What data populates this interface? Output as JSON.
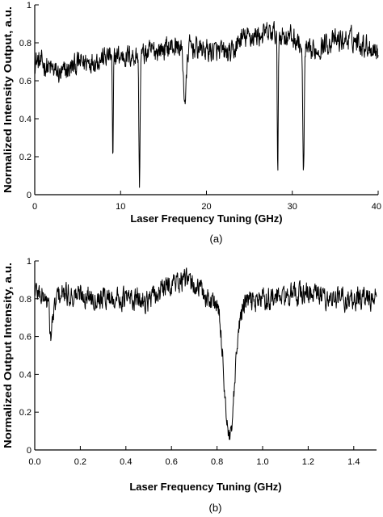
{
  "chart_data": [
    {
      "type": "line",
      "panel_label": "(a)",
      "xlabel": "Laser Frequency Tuning (GHz)",
      "ylabel": "Normalized Intensity Output, a.u.",
      "xlim": [
        0,
        40
      ],
      "ylim": [
        0,
        1
      ],
      "xticks": [
        "0",
        "10",
        "20",
        "30",
        "40"
      ],
      "yticks": [
        "0",
        "0.2",
        "0.4",
        "0.6",
        "0.8",
        "1"
      ],
      "grid": false,
      "legend": "none",
      "line_color": "#000000",
      "noise_amplitude": 0.05,
      "baseline": {
        "x": [
          0,
          2,
          3,
          5,
          7,
          9,
          11,
          13,
          14,
          16,
          18,
          20,
          23,
          24,
          26,
          28,
          30,
          32,
          34,
          37,
          40
        ],
        "y": [
          0.71,
          0.66,
          0.63,
          0.69,
          0.71,
          0.73,
          0.73,
          0.74,
          0.76,
          0.78,
          0.78,
          0.76,
          0.74,
          0.82,
          0.84,
          0.85,
          0.83,
          0.74,
          0.8,
          0.82,
          0.76
        ]
      },
      "dips": [
        {
          "x": 9.1,
          "y": 0.15,
          "width": 0.08
        },
        {
          "x": 12.2,
          "y": 0.07,
          "width": 0.1
        },
        {
          "x": 17.5,
          "y": 0.5,
          "width": 0.25
        },
        {
          "x": 28.3,
          "y": 0.09,
          "width": 0.08
        },
        {
          "x": 31.3,
          "y": 0.1,
          "width": 0.12
        }
      ]
    },
    {
      "type": "line",
      "panel_label": "(b)",
      "xlabel": "Laser Frequency Tuning (GHz)",
      "ylabel": "Normalized Output Intensity, a.u.",
      "xlim": [
        0,
        1.5
      ],
      "ylim": [
        0,
        1
      ],
      "xticks": [
        "0.0",
        "0.2",
        "0.4",
        "0.6",
        "0.8",
        "1.0",
        "1.2",
        "1.4"
      ],
      "yticks": [
        "0",
        "0.2",
        "0.4",
        "0.6",
        "0.8",
        "1"
      ],
      "grid": false,
      "legend": "none",
      "line_color": "#000000",
      "noise_amplitude": 0.05,
      "baseline": {
        "x": [
          0,
          0.05,
          0.08,
          0.1,
          0.2,
          0.3,
          0.4,
          0.5,
          0.6,
          0.65,
          0.72,
          0.76,
          0.9,
          1.0,
          1.1,
          1.2,
          1.3,
          1.4,
          1.5
        ],
        "y": [
          0.85,
          0.8,
          0.7,
          0.82,
          0.82,
          0.81,
          0.8,
          0.79,
          0.88,
          0.9,
          0.86,
          0.8,
          0.78,
          0.8,
          0.81,
          0.83,
          0.8,
          0.8,
          0.8
        ]
      },
      "dips": [
        {
          "x": 0.07,
          "y": 0.6,
          "width": 0.006
        },
        {
          "x": 0.855,
          "y": 0.05,
          "width": 0.032
        }
      ]
    }
  ]
}
